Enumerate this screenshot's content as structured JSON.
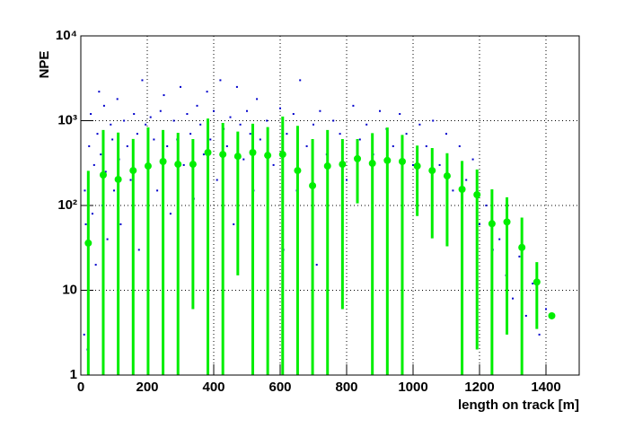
{
  "chart_data": {
    "type": "scatter",
    "xlabel": "length on track [m]",
    "ylabel": "NPE",
    "xlim": [
      0,
      1500
    ],
    "xticks": [
      0,
      200,
      400,
      600,
      800,
      1000,
      1200,
      1400
    ],
    "ylim": [
      1,
      10000
    ],
    "log_y": true,
    "grid": true,
    "yticks": [
      1,
      10,
      {
        "value": 100,
        "label": "10²"
      },
      {
        "value": 1000,
        "label": "10³"
      },
      {
        "value": 10000,
        "label": "10⁴"
      }
    ],
    "series": [
      {
        "type": "scatter",
        "color": "#0000cc",
        "x": [
          10,
          12,
          15,
          20,
          25,
          30,
          35,
          40,
          45,
          50,
          55,
          60,
          65,
          70,
          75,
          80,
          90,
          95,
          100,
          110,
          115,
          120,
          130,
          140,
          150,
          160,
          170,
          175,
          185,
          195,
          200,
          210,
          220,
          230,
          240,
          250,
          260,
          270,
          280,
          290,
          300,
          310,
          320,
          330,
          340,
          350,
          360,
          370,
          380,
          390,
          400,
          410,
          420,
          430,
          440,
          450,
          460,
          470,
          480,
          490,
          500,
          510,
          520,
          530,
          540,
          560,
          580,
          600,
          610,
          620,
          640,
          650,
          660,
          680,
          700,
          710,
          720,
          740,
          760,
          780,
          800,
          820,
          840,
          860,
          880,
          900,
          920,
          940,
          960,
          980,
          1000,
          1020,
          1040,
          1060,
          1080,
          1100,
          1120,
          1140,
          1160,
          1180,
          1200,
          1220,
          1240,
          1260,
          1280,
          1300,
          1320,
          1340,
          1360,
          1380,
          1400
        ],
        "values": [
          3,
          150,
          60,
          2,
          500,
          1200,
          80,
          300,
          20,
          700,
          2200,
          400,
          100,
          1500,
          250,
          40,
          900,
          600,
          150,
          1800,
          350,
          60,
          1000,
          500,
          200,
          1200,
          700,
          30,
          3000,
          900,
          300,
          1100,
          600,
          150,
          1300,
          2000,
          500,
          80,
          1000,
          600,
          2500,
          300,
          1200,
          700,
          120,
          1500,
          900,
          400,
          2200,
          600,
          1300,
          200,
          3000,
          800,
          500,
          1100,
          60,
          2500,
          900,
          350,
          1300,
          700,
          150,
          1800,
          600,
          1000,
          300,
          1400,
          30,
          700,
          1200,
          150,
          3000,
          500,
          900,
          20,
          1300,
          400,
          1000,
          700,
          200,
          1500,
          600,
          900,
          400,
          1300,
          800,
          500,
          1200,
          700,
          300,
          900,
          500,
          1000,
          300,
          700,
          150,
          500,
          200,
          350,
          60,
          100,
          30,
          40,
          15,
          8,
          25,
          5,
          12,
          3,
          6
        ]
      },
      {
        "type": "errorbar",
        "color": "#00ee00",
        "x": [
          22.5,
          67.5,
          112.5,
          157.5,
          202.5,
          247.5,
          292.5,
          337.5,
          382.5,
          427.5,
          472.5,
          517.5,
          562.5,
          607.5,
          652.5,
          697.5,
          742.5,
          787.5,
          832.5,
          877.5,
          922.5,
          967.5,
          1012.5,
          1057.5,
          1102.5,
          1147.5,
          1192.5,
          1237.5,
          1282.5,
          1327.5,
          1372.5,
          1417.5
        ],
        "values": [
          36,
          229,
          203,
          258,
          292,
          330,
          306,
          306,
          421,
          400,
          380,
          421,
          390,
          400,
          258,
          171,
          292,
          306,
          356,
          314,
          340,
          330,
          292,
          258,
          223,
          155,
          134,
          61,
          64,
          32,
          12.5,
          5
        ],
        "errors": [
          220,
          547,
          520,
          350,
          540,
          446,
          414,
          300,
          640,
          540,
          365,
          500,
          450,
          720,
          610,
          435,
          484,
          300,
          250,
          400,
          490,
          350,
          217,
          217,
          190,
          180,
          132,
          94,
          61,
          40,
          9,
          0.3
        ]
      }
    ]
  }
}
